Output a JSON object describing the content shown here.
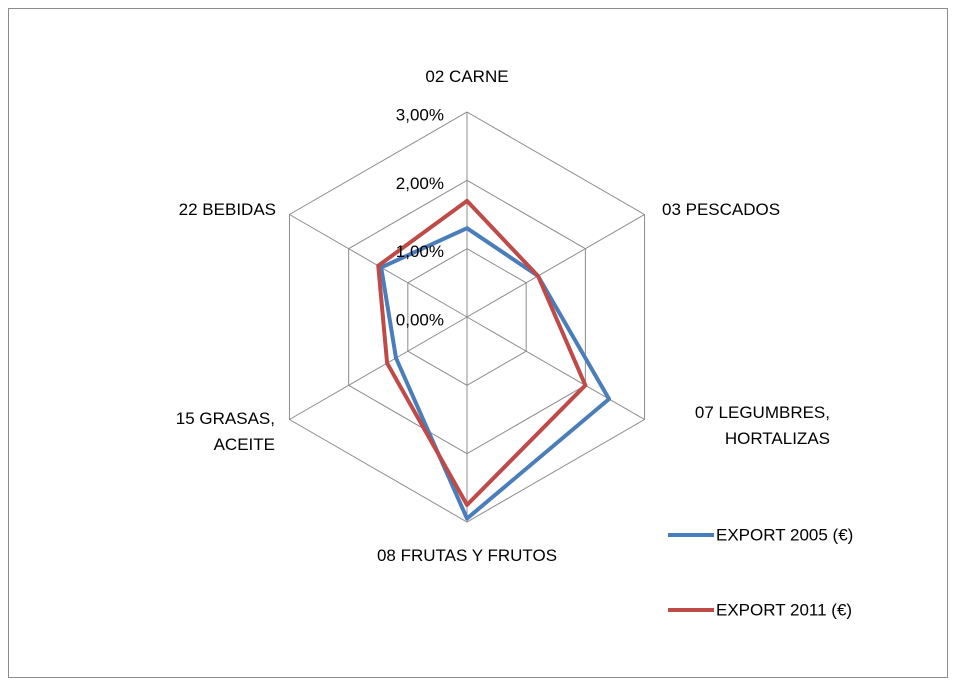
{
  "chart_data": {
    "type": "radar",
    "categories": [
      "02 CARNE",
      "03 PESCADOS",
      "07 LEGUMBRES, HORTALIZAS",
      "08 FRUTAS Y FRUTOS",
      "15 GRASAS, ACEITE",
      "22 BEBIDAS"
    ],
    "series": [
      {
        "name": "EXPORT 2005 (€)",
        "color": "#4a7ebb",
        "values": [
          1.3,
          1.2,
          2.4,
          2.95,
          1.2,
          1.45
        ]
      },
      {
        "name": "EXPORT 2011 (€)",
        "color": "#be4b48",
        "values": [
          1.7,
          1.2,
          2.0,
          2.75,
          1.35,
          1.5
        ]
      }
    ],
    "ylim": [
      0,
      3
    ],
    "yticks": [
      {
        "value": 0,
        "label": "0,00%"
      },
      {
        "value": 1,
        "label": "1,00%"
      },
      {
        "value": 2,
        "label": "2,00%"
      },
      {
        "value": 3,
        "label": "3,00%"
      }
    ],
    "grid": true,
    "legend": "right"
  }
}
